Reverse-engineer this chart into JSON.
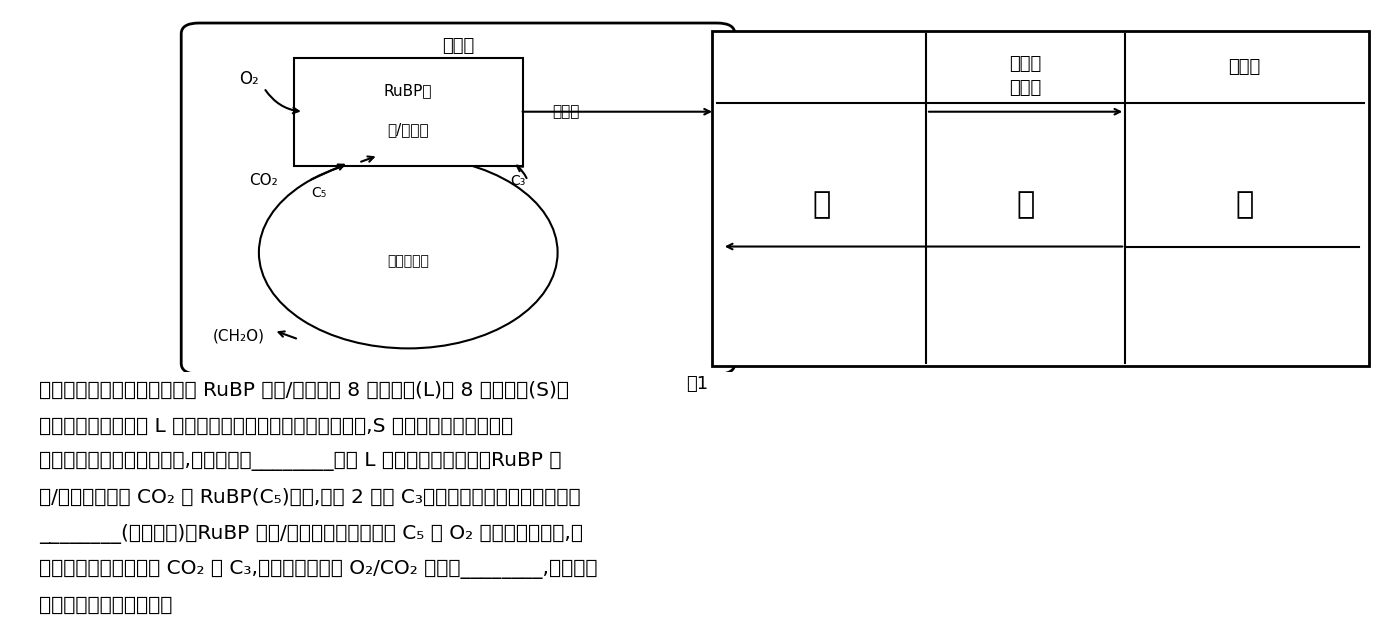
{
  "bg_color": "#ffffff",
  "fig_caption": "图1",
  "chloroplast_label": "叶绿体",
  "rubp_line1": "RuBP羧",
  "rubp_line2": "化/加氧酶",
  "peroxisome_line1": "过氧化",
  "peroxisome_line2": "物酶体",
  "mitochondria_label": "线粒体",
  "light_label": "光",
  "hu_label": "呼",
  "xi_label": "吸",
  "o2_label": "O₂",
  "co2_label": "CO₂",
  "c5_label": "C₅",
  "c3_label": "C₃",
  "calvin_label": "卡尔文循环",
  "ch2o_label": "(CH₂O)",
  "ethanol_label": "乙醇酸",
  "paragraph_lines": [
    "现代细胞分子生物学研究发现 RuBP 羧化/加氧酶由 8 个大亚基(L)和 8 个小亚基(S)组",
    "成。高等植物细胞中 L 由叶绿体基因编码并在叶绿体中合成,S 由细胞核基因编码并在",
    "核糖体中合成后进入叶绿体,在叶绿体的________中与 L 组装成有功能的酶。RuBP 羧",
    "化/加氧酶可催化 CO₂ 与 RuBP(C₅)结合,生成 2 分子 C₃。影响该反应的内部因素包括",
    "________(写出两个)。RuBP 羧化/加氧酶还可参与催化 C₅ 与 O₂ 反应产生乙醇酸,乙",
    "醇酸中的碳又重新生成 CO₂ 和 C₃,该过程使细胞内 O₂/CO₂ 的比值________,有利于生",
    "物适应高氧低碳的环境。"
  ]
}
